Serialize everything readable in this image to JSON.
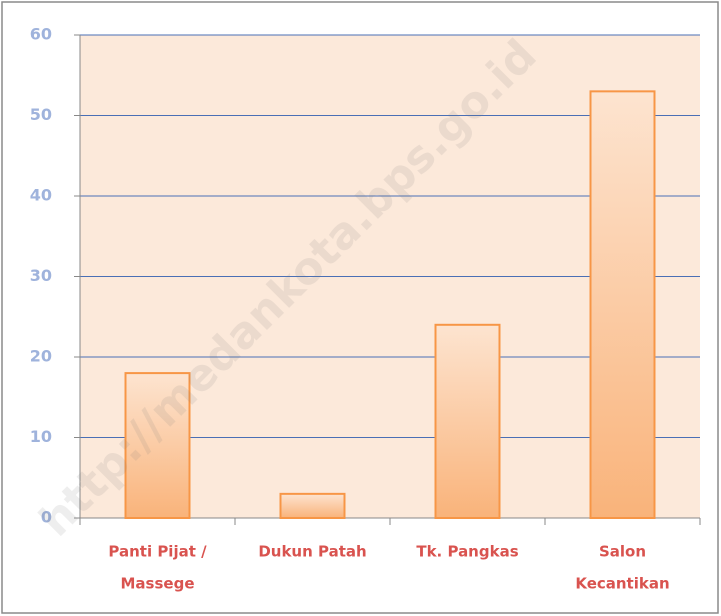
{
  "chart_data": {
    "type": "bar",
    "categories": [
      [
        "Panti Pijat /",
        "Massege"
      ],
      [
        "Dukun Patah"
      ],
      [
        "Tk. Pangkas"
      ],
      [
        "Salon",
        "Kecantikan"
      ]
    ],
    "values": [
      18,
      3,
      24,
      53
    ],
    "color": "#f79646",
    "ylim": [
      0,
      60
    ],
    "yticks": [
      0,
      10,
      20,
      30,
      40,
      50,
      60
    ],
    "grid": true,
    "watermark": "http://medankota.bps.go.id"
  }
}
